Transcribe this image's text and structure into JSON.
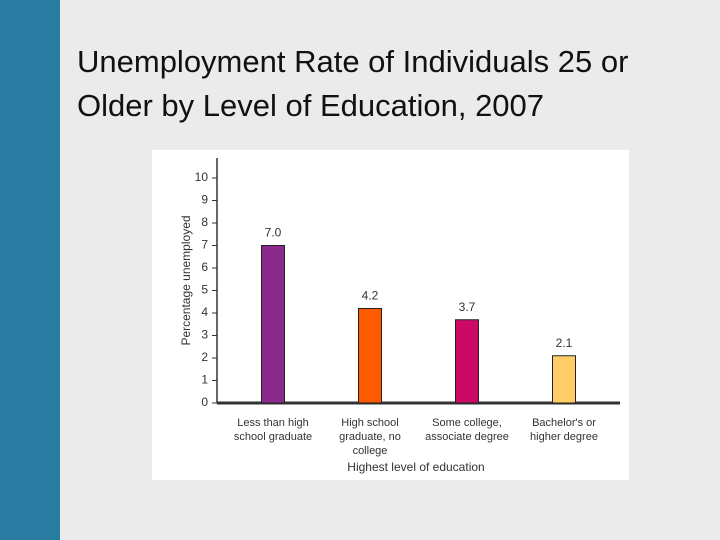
{
  "title": "Unemployment Rate of Individuals 25 or Older by Level of Education, 2007",
  "chart_data": {
    "type": "bar",
    "categories": [
      "Less than high school graduate",
      "High school graduate, no college",
      "Some college, associate degree",
      "Bachelor's or higher degree"
    ],
    "values": [
      7.0,
      4.2,
      3.7,
      2.1
    ],
    "value_labels": [
      "7.0",
      "4.2",
      "3.7",
      "2.1"
    ],
    "colors": [
      "#8b2a8c",
      "#ff5a00",
      "#cc0a66",
      "#ffcc66"
    ],
    "x_label": "Highest level of education",
    "y_label": "Percentage unemployed",
    "ylim": [
      0,
      10
    ],
    "yticks": [
      0,
      1,
      2,
      3,
      4,
      5,
      6,
      7,
      8,
      9,
      10
    ]
  }
}
